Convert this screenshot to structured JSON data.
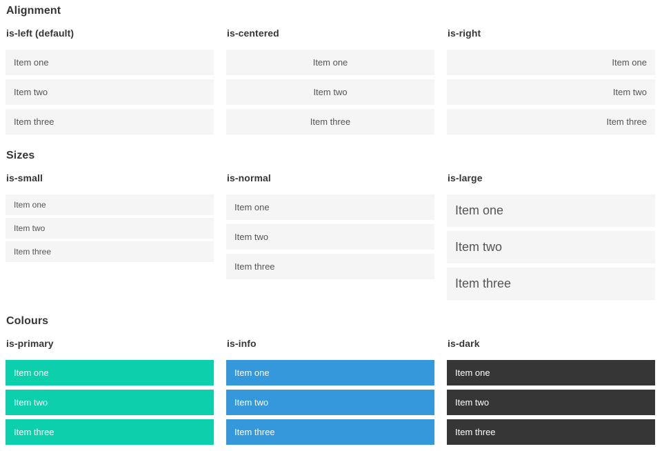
{
  "sections": [
    {
      "title": "Alignment",
      "columns": [
        {
          "label": "is-left (default)",
          "items": [
            "Item one",
            "Item two",
            "Item three"
          ]
        },
        {
          "label": "is-centered",
          "items": [
            "Item one",
            "Item two",
            "Item three"
          ]
        },
        {
          "label": "is-right",
          "items": [
            "Item one",
            "Item two",
            "Item three"
          ]
        }
      ]
    },
    {
      "title": "Sizes",
      "columns": [
        {
          "label": "is-small",
          "items": [
            "Item one",
            "Item two",
            "Item three"
          ]
        },
        {
          "label": "is-normal",
          "items": [
            "Item one",
            "Item two",
            "Item three"
          ]
        },
        {
          "label": "is-large",
          "items": [
            "Item one",
            "Item two",
            "Item three"
          ]
        }
      ]
    },
    {
      "title": "Colours",
      "columns": [
        {
          "label": "is-primary",
          "items": [
            "Item one",
            "Item two",
            "Item three"
          ]
        },
        {
          "label": "is-info",
          "items": [
            "Item one",
            "Item two",
            "Item three"
          ]
        },
        {
          "label": "is-dark",
          "items": [
            "Item one",
            "Item two",
            "Item three"
          ]
        }
      ]
    }
  ],
  "colors": {
    "primary": "#0ccfac",
    "info": "#3498db",
    "dark": "#363636",
    "light_bg": "#f5f5f5",
    "item_text": "#555555",
    "heading_text": "#363636",
    "colored_item_text": "#ffffff"
  }
}
